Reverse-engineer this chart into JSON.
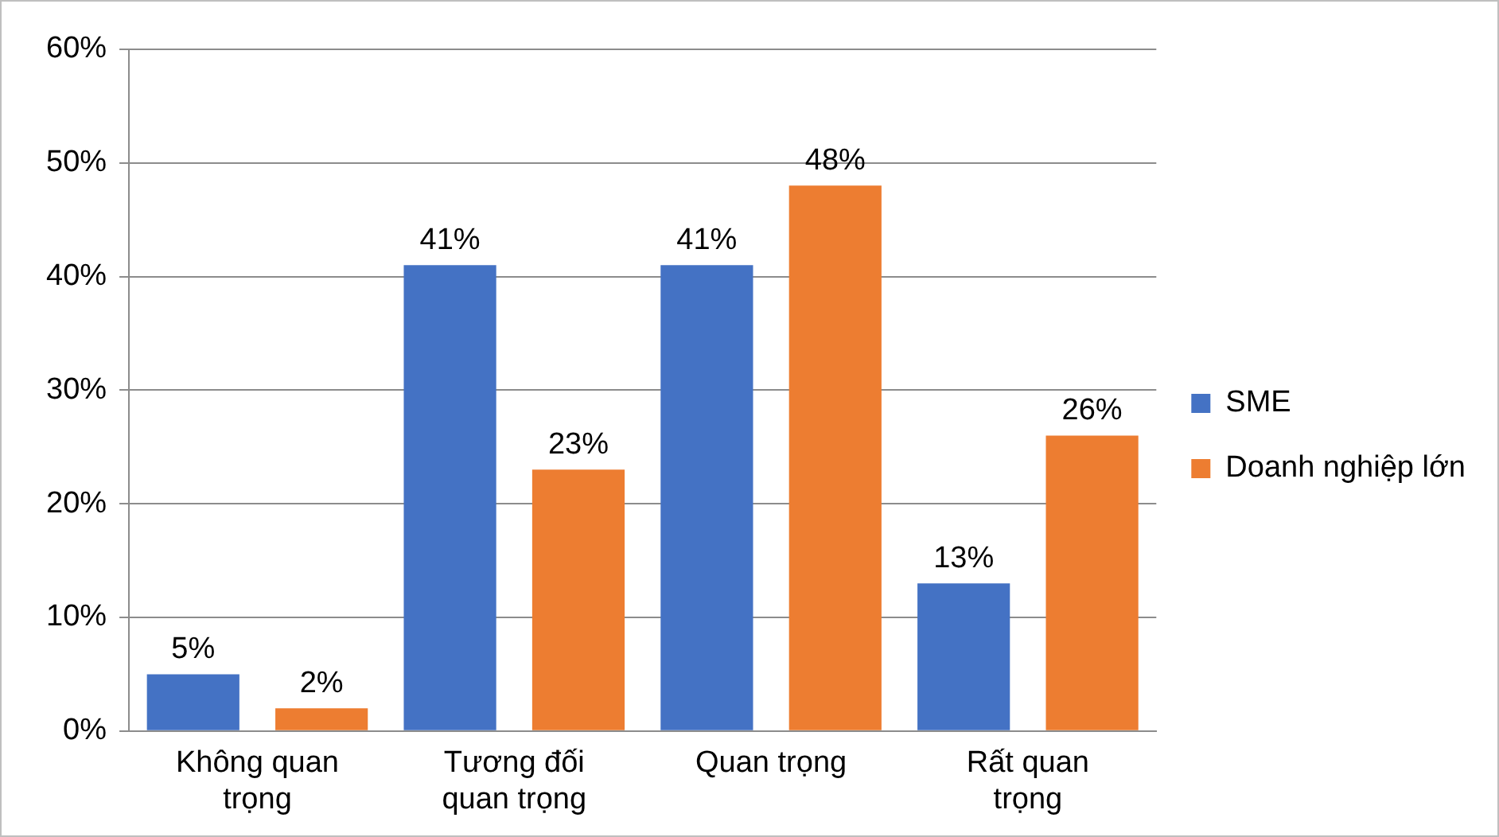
{
  "chart_data": {
    "type": "bar",
    "categories": [
      "Không quan trọng",
      "Tương đối quan trọng",
      "Quan trọng",
      "Rất quan trọng"
    ],
    "series": [
      {
        "name": "SME",
        "color": "#4472c4",
        "values": [
          5,
          41,
          41,
          13
        ],
        "value_labels": [
          "5%",
          "41%",
          "41%",
          "13%"
        ]
      },
      {
        "name": "Doanh nghiệp lớn",
        "color": "#ed7d31",
        "values": [
          2,
          23,
          48,
          26
        ],
        "value_labels": [
          "2%",
          "23%",
          "48%",
          "26%"
        ]
      }
    ],
    "ylim": [
      0,
      60
    ],
    "yticks": [
      {
        "value": 0,
        "label": "0%"
      },
      {
        "value": 10,
        "label": "10%"
      },
      {
        "value": 20,
        "label": "20%"
      },
      {
        "value": 30,
        "label": "30%"
      },
      {
        "value": 40,
        "label": "40%"
      },
      {
        "value": 50,
        "label": "50%"
      },
      {
        "value": 60,
        "label": "60%"
      }
    ],
    "grid": "y",
    "legend": "right"
  }
}
